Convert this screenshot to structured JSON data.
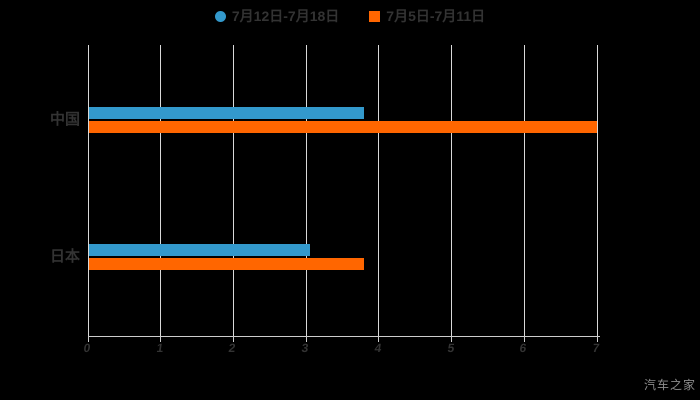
{
  "page": {
    "background": "#000000",
    "watermark": "汽车之家"
  },
  "legend": {
    "items": [
      {
        "label": "7月12日-7月18日",
        "marker": "circle",
        "color": "#3399cc"
      },
      {
        "label": "7月5日-7月11日",
        "marker": "square",
        "color": "#ff6600"
      }
    ]
  },
  "chart_data": {
    "type": "bar",
    "orientation": "horizontal",
    "title": "",
    "xlabel": "",
    "ylabel": "",
    "categories": [
      "中国",
      "日本"
    ],
    "series": [
      {
        "name": "7月12日-7月18日",
        "color": "#3399cc",
        "marker": "circle",
        "values": [
          3.8,
          3.05
        ]
      },
      {
        "name": "7月5日-7月11日",
        "color": "#ff6600",
        "marker": "square",
        "values": [
          7,
          3.8
        ]
      }
    ],
    "xlim": [
      0,
      7
    ],
    "x_ticks": [
      0,
      1,
      2,
      3,
      4,
      5,
      6,
      7
    ],
    "grid": true,
    "legend_position": "top",
    "styles": {
      "grid_color": "#d9d9d9",
      "axis_color": "#cccccc",
      "text_color": "#333333",
      "watermark_color": "#8c8c8c"
    }
  }
}
